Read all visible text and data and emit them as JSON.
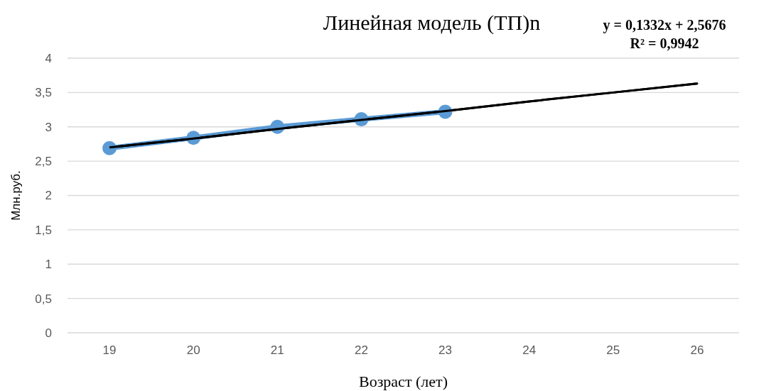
{
  "chart_data": {
    "type": "line",
    "title": "Линейная модель (ТП)n",
    "xlabel": "Возраст (лет)",
    "ylabel": "Млн.руб.",
    "categories": [
      "19",
      "20",
      "21",
      "22",
      "23",
      "24",
      "25",
      "26"
    ],
    "series": [
      {
        "color": "#5b9bd5",
        "values": [
          2.69,
          2.84,
          3.0,
          3.11,
          3.22,
          null,
          null,
          null
        ],
        "marker": "circle"
      },
      {
        "type": "line",
        "color": "#000000",
        "values": [
          2.7,
          2.83,
          2.97,
          3.1,
          3.23,
          3.37,
          3.5,
          3.63
        ],
        "marker": "none"
      }
    ],
    "ylim": [
      0,
      4
    ],
    "yticks": [
      0,
      {
        "value": 0.5,
        "label": "0,5"
      },
      1,
      {
        "value": 1.5,
        "label": "1,5"
      },
      2,
      {
        "value": 2.5,
        "label": "2,5"
      },
      3,
      {
        "value": 3.5,
        "label": "3,5"
      },
      4
    ],
    "grid": "y",
    "annotations": [
      "y = 0,1332x + 2,5676",
      "R² = 0,9942"
    ]
  }
}
